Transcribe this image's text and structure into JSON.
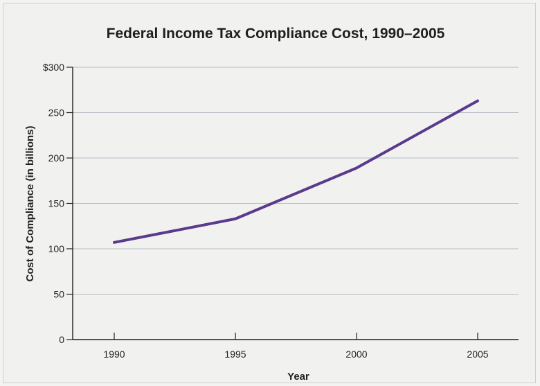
{
  "chart_data": {
    "type": "line",
    "title": "Federal Income Tax Compliance Cost, 1990–2005",
    "xlabel": "Year",
    "ylabel": "Cost of Compliance (in billions)",
    "x": [
      1990,
      1995,
      2000,
      2005
    ],
    "x_tick_labels": [
      "1990",
      "1995",
      "2000",
      "2005"
    ],
    "y_tick_labels": [
      "0",
      "50",
      "100",
      "150",
      "200",
      "250",
      "$300"
    ],
    "y_ticks": [
      0,
      50,
      100,
      150,
      200,
      250,
      300
    ],
    "ylim": [
      0,
      300
    ],
    "grid": true,
    "series": [
      {
        "values": [
          107,
          133,
          189,
          263
        ]
      }
    ]
  },
  "colors": {
    "line": "#5a3a8c",
    "grid": "#b8bcc4",
    "axis": "#1f1f1f",
    "background": "#f1f2f0"
  }
}
